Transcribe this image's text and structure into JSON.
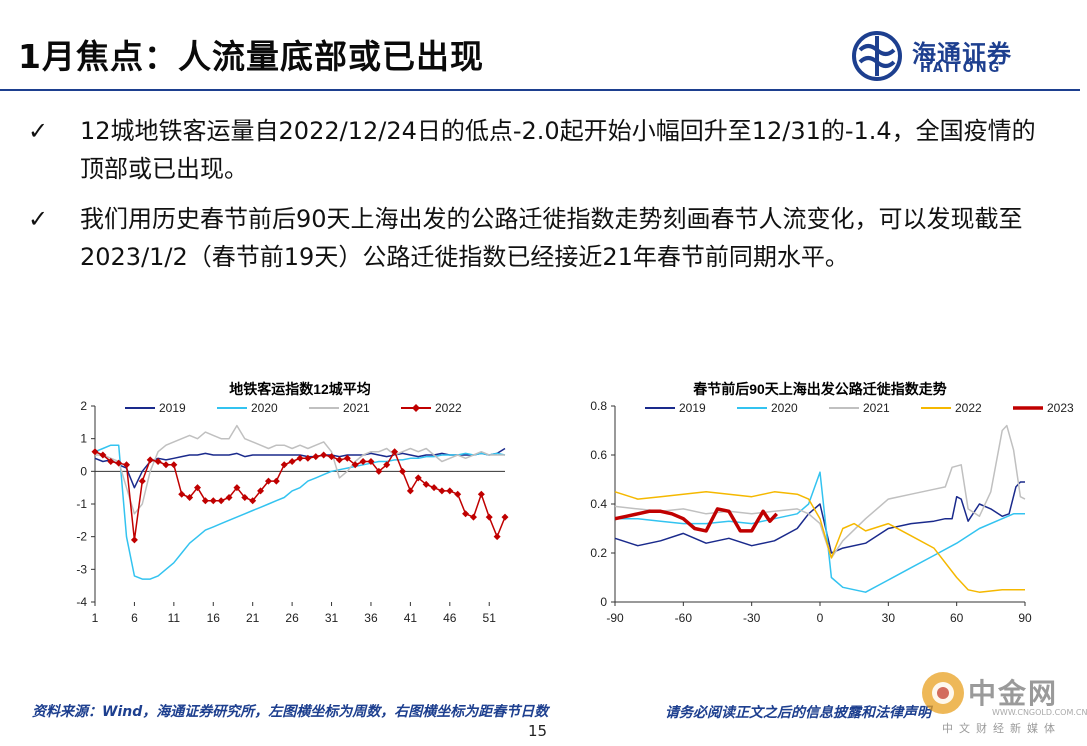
{
  "slide": {
    "title": "1月焦点：人流量底部或已出现",
    "logo": {
      "cn": "海通证券",
      "en": "HAITONG"
    },
    "bullets": [
      "12城地铁客运量自2022/12/24日的低点-2.0起开始小幅回升至12/31的-1.4，全国疫情的顶部或已出现。",
      "我们用历史春节前后90天上海出发的公路迁徙指数走势刻画春节人流变化，可以发现截至2023/1/2（春节前19天）公路迁徙指数已经接近21年春节前同期水平。"
    ],
    "footer": {
      "source": "资料来源：Wind，海通证券研究所，左图横坐标为周数，右图横坐标为距春节日数",
      "disclaimer": "请务必阅读正文之后的信息披露和法律声明",
      "page": "15"
    },
    "watermark": {
      "cn": "中金网",
      "url": "WWW.CNGOLD.COM.CN",
      "sub": "中文财经新媒体"
    }
  },
  "colors": {
    "2019": "#1a2a8c",
    "2020": "#33c3f0",
    "2021": "#c0c0c0",
    "2022": "#f5b800",
    "2023": "#c00000",
    "2022_metro": "#c00000",
    "accent": "#1d3f8f"
  },
  "chart_data": [
    {
      "type": "line",
      "title": "地铁客运指数12城平均",
      "xlabel": "",
      "ylabel": "",
      "xlim": [
        1,
        53
      ],
      "ylim": [
        -4,
        2
      ],
      "xticks": [
        1,
        6,
        11,
        16,
        21,
        26,
        31,
        36,
        41,
        46,
        51
      ],
      "yticks": [
        -4,
        -3,
        -2,
        -1,
        0,
        1,
        2
      ],
      "legend": "top",
      "series": [
        {
          "name": "2019",
          "color": "#1a2a8c",
          "x": [
            1,
            2,
            3,
            4,
            5,
            6,
            7,
            8,
            9,
            10,
            11,
            12,
            13,
            14,
            15,
            16,
            17,
            18,
            19,
            20,
            21,
            22,
            23,
            24,
            25,
            26,
            27,
            28,
            29,
            30,
            31,
            32,
            33,
            34,
            35,
            36,
            37,
            38,
            39,
            40,
            41,
            42,
            43,
            44,
            45,
            46,
            47,
            48,
            49,
            50,
            51,
            52,
            53
          ],
          "y": [
            0.4,
            0.3,
            0.35,
            0.2,
            0.1,
            -0.5,
            0.0,
            0.3,
            0.4,
            0.35,
            0.4,
            0.45,
            0.5,
            0.5,
            0.55,
            0.5,
            0.5,
            0.5,
            0.55,
            0.45,
            0.5,
            0.5,
            0.5,
            0.5,
            0.5,
            0.5,
            0.5,
            0.45,
            0.45,
            0.5,
            0.5,
            0.45,
            0.5,
            0.5,
            0.5,
            0.55,
            0.5,
            0.45,
            0.5,
            0.55,
            0.5,
            0.45,
            0.5,
            0.5,
            0.55,
            0.5,
            0.5,
            0.5,
            0.5,
            0.55,
            0.5,
            0.55,
            0.7
          ]
        },
        {
          "name": "2020",
          "color": "#33c3f0",
          "x": [
            1,
            2,
            3,
            4,
            5,
            6,
            7,
            8,
            9,
            10,
            11,
            12,
            13,
            14,
            15,
            16,
            17,
            18,
            19,
            20,
            21,
            22,
            23,
            24,
            25,
            26,
            27,
            28,
            29,
            30,
            31,
            32,
            33,
            34,
            35,
            36,
            37,
            38,
            39,
            40,
            41,
            42,
            43,
            44,
            45,
            46,
            47,
            48,
            49,
            50,
            51,
            52,
            53
          ],
          "y": [
            0.6,
            0.7,
            0.8,
            0.8,
            -2.0,
            -3.2,
            -3.3,
            -3.3,
            -3.2,
            -3.0,
            -2.8,
            -2.5,
            -2.2,
            -2.0,
            -1.8,
            -1.7,
            -1.6,
            -1.5,
            -1.4,
            -1.3,
            -1.2,
            -1.1,
            -1.0,
            -0.9,
            -0.8,
            -0.6,
            -0.5,
            -0.3,
            -0.2,
            -0.1,
            0.0,
            0.05,
            0.1,
            0.15,
            0.2,
            0.25,
            0.3,
            0.3,
            0.35,
            0.35,
            0.4,
            0.4,
            0.45,
            0.45,
            0.5,
            0.5,
            0.5,
            0.55,
            0.5,
            0.55,
            0.5,
            0.55,
            0.5
          ]
        },
        {
          "name": "2021",
          "color": "#c0c0c0",
          "x": [
            1,
            2,
            3,
            4,
            5,
            6,
            7,
            8,
            9,
            10,
            11,
            12,
            13,
            14,
            15,
            16,
            17,
            18,
            19,
            20,
            21,
            22,
            23,
            24,
            25,
            26,
            27,
            28,
            29,
            30,
            31,
            32,
            33,
            34,
            35,
            36,
            37,
            38,
            39,
            40,
            41,
            42,
            43,
            44,
            45,
            46,
            47,
            48,
            49,
            50,
            51,
            52,
            53
          ],
          "y": [
            0.5,
            0.5,
            0.4,
            0.3,
            -0.5,
            -1.3,
            -1.0,
            0.0,
            0.6,
            0.8,
            0.9,
            1.0,
            1.1,
            1.0,
            1.2,
            1.1,
            1.0,
            1.0,
            1.4,
            1.0,
            0.9,
            0.8,
            0.7,
            0.8,
            0.8,
            0.7,
            0.8,
            0.7,
            0.8,
            0.9,
            0.6,
            -0.2,
            0.0,
            0.3,
            0.5,
            0.6,
            0.6,
            0.7,
            0.5,
            0.6,
            0.7,
            0.6,
            0.7,
            0.5,
            0.3,
            0.4,
            0.5,
            0.4,
            0.5,
            0.6,
            0.5,
            0.5,
            0.5
          ]
        },
        {
          "name": "2022",
          "color": "#c00000",
          "marker": "diamond",
          "x": [
            1,
            2,
            3,
            4,
            5,
            6,
            7,
            8,
            9,
            10,
            11,
            12,
            13,
            14,
            15,
            16,
            17,
            18,
            19,
            20,
            21,
            22,
            23,
            24,
            25,
            26,
            27,
            28,
            29,
            30,
            31,
            32,
            33,
            34,
            35,
            36,
            37,
            38,
            39,
            40,
            41,
            42,
            43,
            44,
            45,
            46,
            47,
            48,
            49,
            50,
            51,
            52,
            53
          ],
          "y": [
            0.6,
            0.5,
            0.3,
            0.25,
            0.2,
            -2.1,
            -0.3,
            0.35,
            0.3,
            0.2,
            0.2,
            -0.7,
            -0.8,
            -0.5,
            -0.9,
            -0.9,
            -0.9,
            -0.8,
            -0.5,
            -0.8,
            -0.9,
            -0.6,
            -0.3,
            -0.3,
            0.2,
            0.3,
            0.4,
            0.4,
            0.45,
            0.5,
            0.45,
            0.35,
            0.4,
            0.2,
            0.3,
            0.3,
            0.0,
            0.2,
            0.6,
            0.0,
            -0.6,
            -0.2,
            -0.4,
            -0.5,
            -0.6,
            -0.6,
            -0.7,
            -1.3,
            -1.4,
            -0.7,
            -1.4,
            -2.0,
            -1.4
          ]
        }
      ]
    },
    {
      "type": "line",
      "title": "春节前后90天上海出发公路迁徙指数走势",
      "xlabel": "",
      "ylabel": "",
      "xlim": [
        -90,
        90
      ],
      "ylim": [
        0,
        0.8
      ],
      "xticks": [
        -90,
        -60,
        -30,
        0,
        30,
        60,
        90
      ],
      "yticks": [
        0,
        0.2,
        0.4,
        0.6,
        0.8
      ],
      "legend": "top",
      "series": [
        {
          "name": "2019",
          "color": "#1a2a8c",
          "x": [
            -90,
            -80,
            -70,
            -60,
            -50,
            -40,
            -30,
            -20,
            -10,
            -5,
            0,
            5,
            10,
            20,
            30,
            40,
            50,
            55,
            58,
            60,
            62,
            65,
            70,
            75,
            80,
            83,
            86,
            88,
            90
          ],
          "y": [
            0.26,
            0.23,
            0.25,
            0.28,
            0.24,
            0.26,
            0.23,
            0.25,
            0.3,
            0.36,
            0.4,
            0.2,
            0.22,
            0.24,
            0.3,
            0.32,
            0.33,
            0.34,
            0.34,
            0.43,
            0.42,
            0.33,
            0.4,
            0.38,
            0.35,
            0.36,
            0.47,
            0.49,
            0.49
          ]
        },
        {
          "name": "2020",
          "color": "#33c3f0",
          "x": [
            -90,
            -80,
            -70,
            -60,
            -50,
            -40,
            -30,
            -20,
            -10,
            -5,
            0,
            5,
            10,
            20,
            30,
            40,
            50,
            60,
            70,
            80,
            85,
            90
          ],
          "y": [
            0.34,
            0.34,
            0.33,
            0.32,
            0.32,
            0.33,
            0.32,
            0.34,
            0.36,
            0.4,
            0.53,
            0.1,
            0.06,
            0.04,
            0.09,
            0.14,
            0.19,
            0.24,
            0.3,
            0.34,
            0.36,
            0.36
          ]
        },
        {
          "name": "2021",
          "color": "#c0c0c0",
          "x": [
            -90,
            -80,
            -70,
            -60,
            -50,
            -40,
            -30,
            -20,
            -10,
            -5,
            0,
            5,
            10,
            20,
            30,
            40,
            50,
            55,
            58,
            62,
            65,
            70,
            75,
            80,
            82,
            85,
            88,
            90
          ],
          "y": [
            0.39,
            0.38,
            0.37,
            0.38,
            0.36,
            0.37,
            0.36,
            0.37,
            0.38,
            0.36,
            0.32,
            0.18,
            0.25,
            0.34,
            0.42,
            0.44,
            0.46,
            0.47,
            0.55,
            0.56,
            0.38,
            0.35,
            0.45,
            0.7,
            0.72,
            0.62,
            0.43,
            0.42
          ]
        },
        {
          "name": "2022",
          "color": "#f5b800",
          "x": [
            -90,
            -80,
            -70,
            -60,
            -50,
            -40,
            -30,
            -20,
            -10,
            -5,
            0,
            5,
            10,
            15,
            20,
            30,
            40,
            50,
            60,
            65,
            70,
            80,
            90
          ],
          "y": [
            0.45,
            0.42,
            0.43,
            0.44,
            0.45,
            0.44,
            0.43,
            0.45,
            0.44,
            0.42,
            0.34,
            0.18,
            0.3,
            0.32,
            0.29,
            0.32,
            0.27,
            0.22,
            0.1,
            0.05,
            0.04,
            0.05,
            0.05
          ]
        },
        {
          "name": "2023",
          "color": "#c00000",
          "x": [
            -90,
            -85,
            -80,
            -75,
            -70,
            -65,
            -60,
            -55,
            -50,
            -45,
            -40,
            -35,
            -30,
            -25,
            -22,
            -19
          ],
          "y": [
            0.34,
            0.35,
            0.36,
            0.37,
            0.37,
            0.36,
            0.34,
            0.3,
            0.29,
            0.38,
            0.37,
            0.29,
            0.29,
            0.37,
            0.33,
            0.36
          ]
        }
      ]
    }
  ]
}
